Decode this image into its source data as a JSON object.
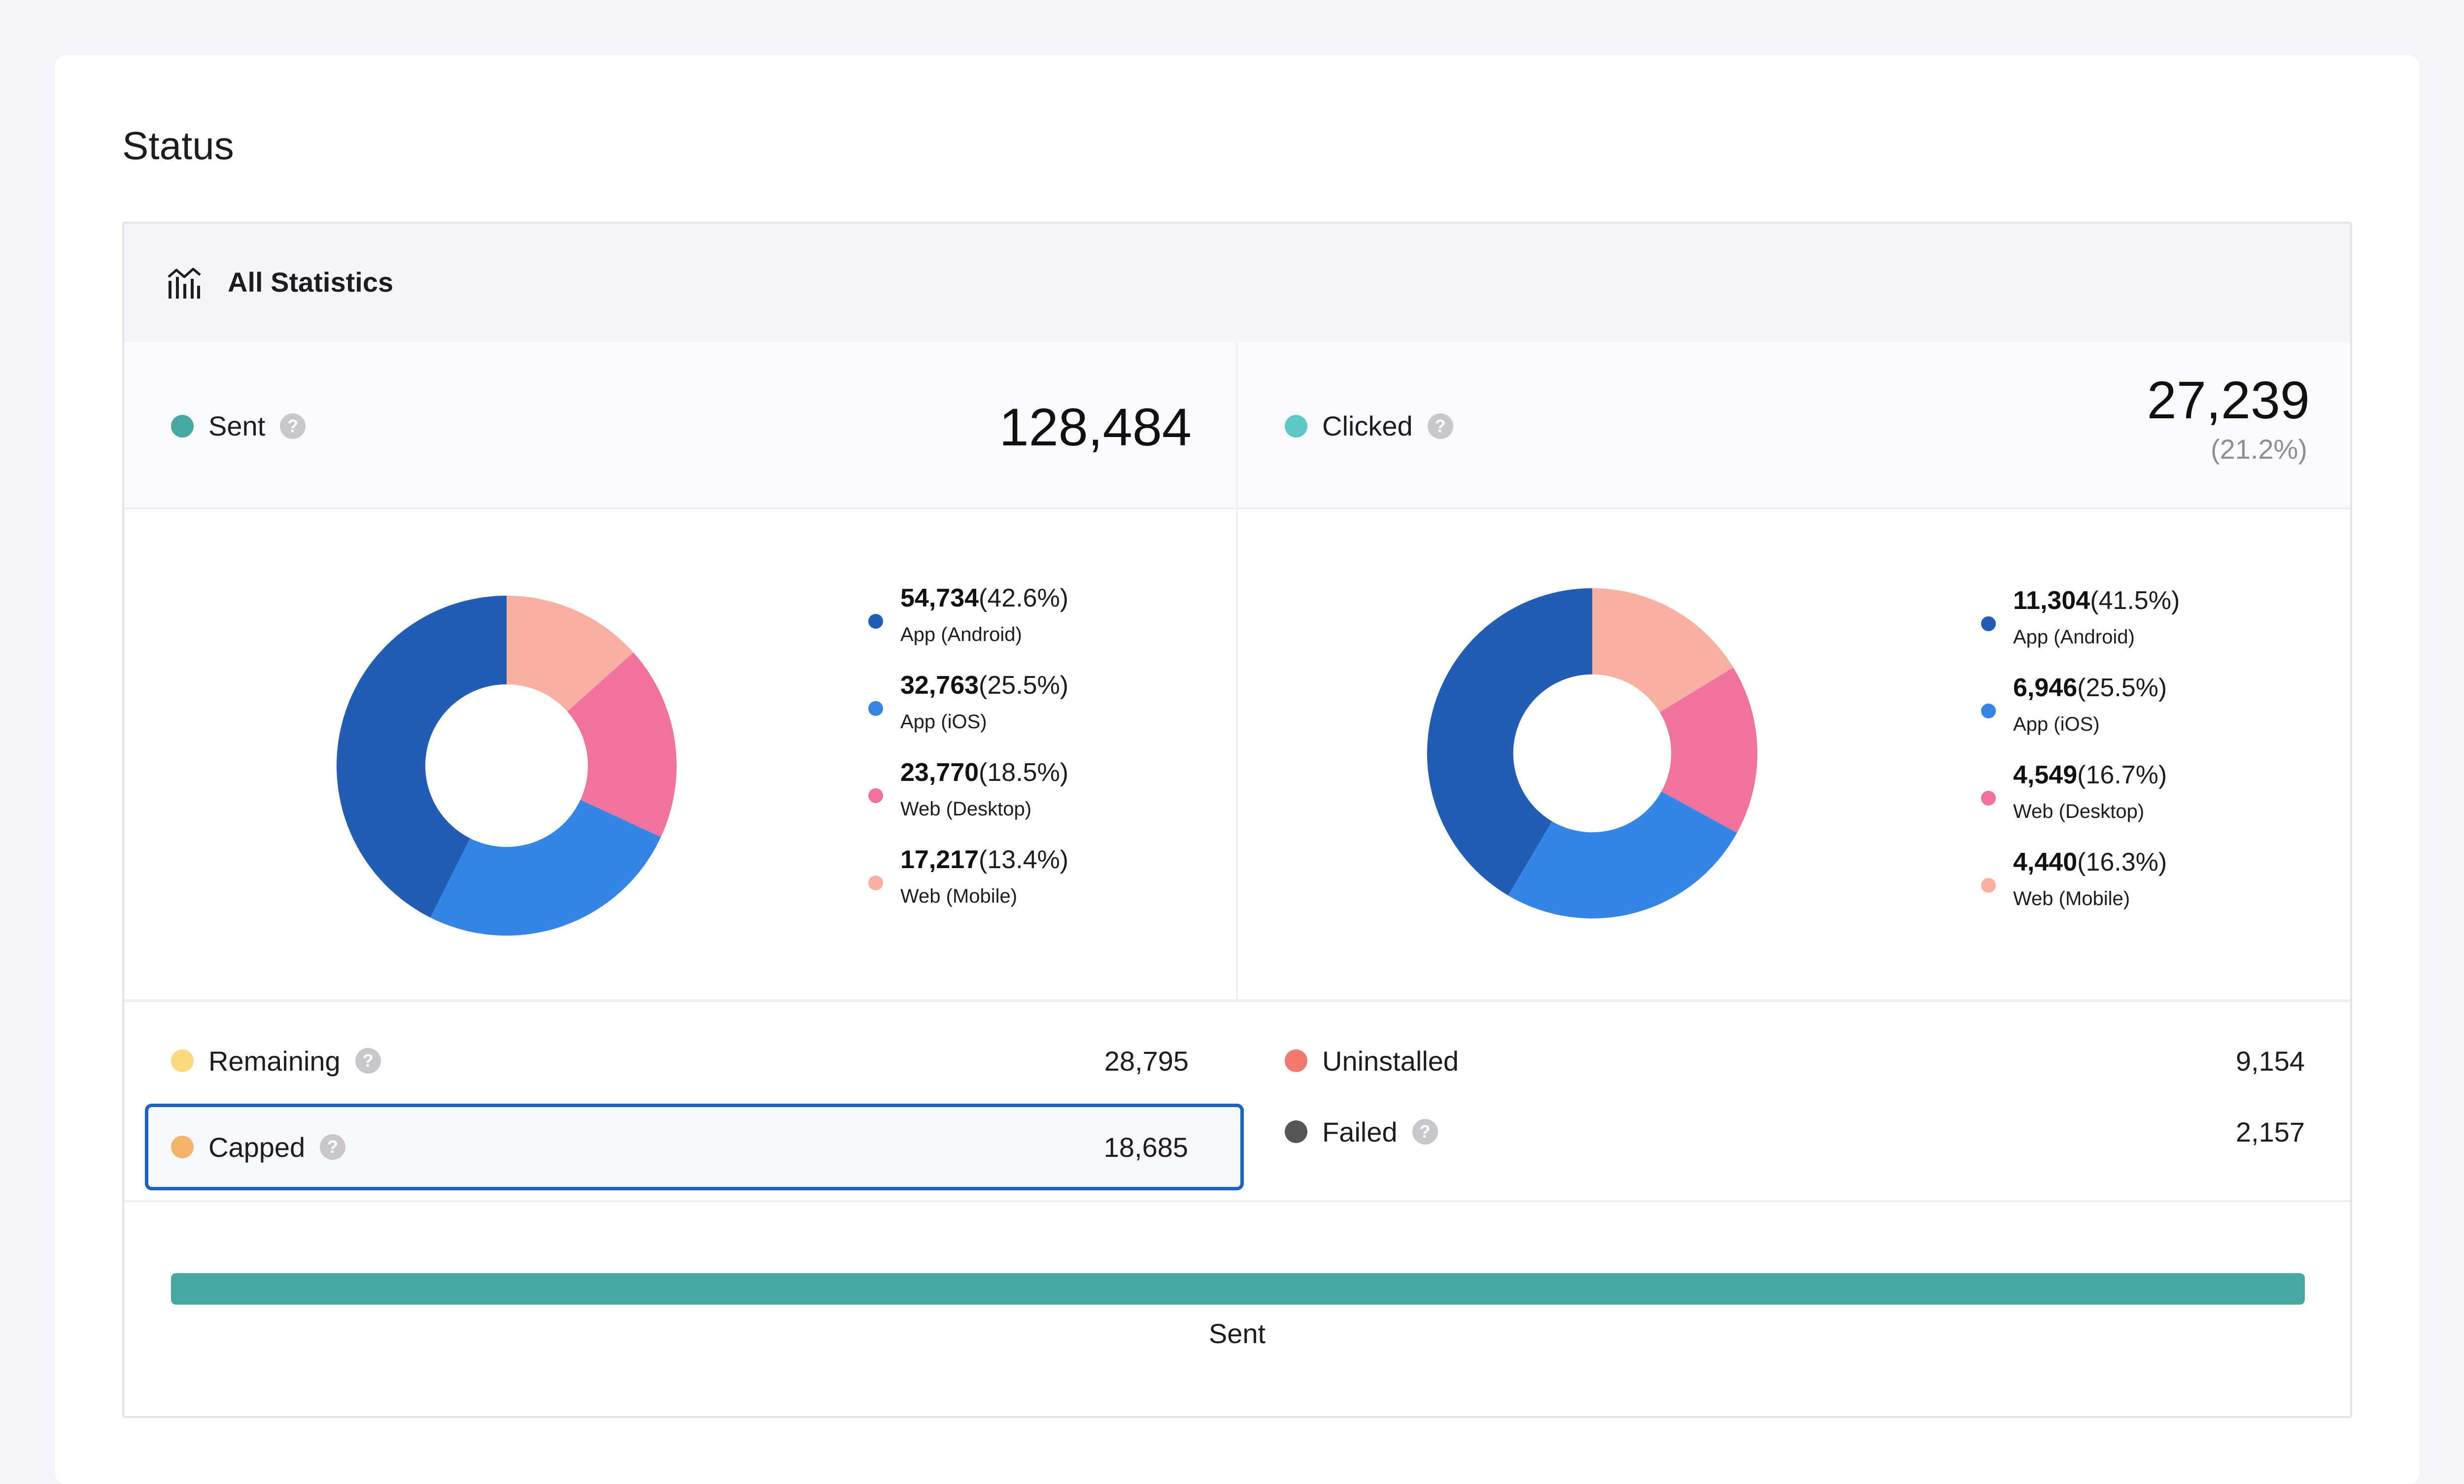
{
  "page": {
    "title": "Status"
  },
  "panel": {
    "title": "All Statistics",
    "icon": "bar-chart-icon"
  },
  "colors": {
    "android": "#215db4",
    "ios": "#3485e5",
    "desktop": "#f2729e",
    "mobile": "#f8b0a3",
    "sent": "#46a8a3",
    "clicked": "#5ec8c2",
    "remaining": "#fbd97e",
    "capped": "#f4b56a",
    "uninstalled": "#f27a6c",
    "failed": "#565656"
  },
  "sent": {
    "label": "Sent",
    "value": "128,484",
    "help": "?",
    "breakdown": [
      {
        "value": "54,734",
        "pct": "(42.6%)",
        "name": "App (Android)",
        "share": 42.6,
        "color": "#215db4"
      },
      {
        "value": "32,763",
        "pct": "(25.5%)",
        "name": "App (iOS)",
        "share": 25.5,
        "color": "#3485e5"
      },
      {
        "value": "23,770",
        "pct": "(18.5%)",
        "name": "Web (Desktop)",
        "share": 18.5,
        "color": "#f2729e"
      },
      {
        "value": "17,217",
        "pct": "(13.4%)",
        "name": "Web (Mobile)",
        "share": 13.4,
        "color": "#f8b0a3"
      }
    ]
  },
  "clicked": {
    "label": "Clicked",
    "value": "27,239",
    "sub": "(21.2%)",
    "help": "?",
    "breakdown": [
      {
        "value": "11,304",
        "pct": "(41.5%)",
        "name": "App (Android)",
        "share": 41.5,
        "color": "#215db4"
      },
      {
        "value": "6,946",
        "pct": "(25.5%)",
        "name": "App (iOS)",
        "share": 25.5,
        "color": "#3485e5"
      },
      {
        "value": "4,549",
        "pct": "(16.7%)",
        "name": "Web (Desktop)",
        "share": 16.7,
        "color": "#f2729e"
      },
      {
        "value": "4,440",
        "pct": "(16.3%)",
        "name": "Web (Mobile)",
        "share": 16.3,
        "color": "#f8b0a3"
      }
    ]
  },
  "counts": {
    "remaining": {
      "label": "Remaining",
      "value": "28,795",
      "help": "?"
    },
    "capped": {
      "label": "Capped",
      "value": "18,685",
      "help": "?"
    },
    "uninstalled": {
      "label": "Uninstalled",
      "value": "9,154"
    },
    "failed": {
      "label": "Failed",
      "value": "2,157",
      "help": "?"
    }
  },
  "progress": {
    "label": "Sent",
    "fraction": 1.0
  }
}
